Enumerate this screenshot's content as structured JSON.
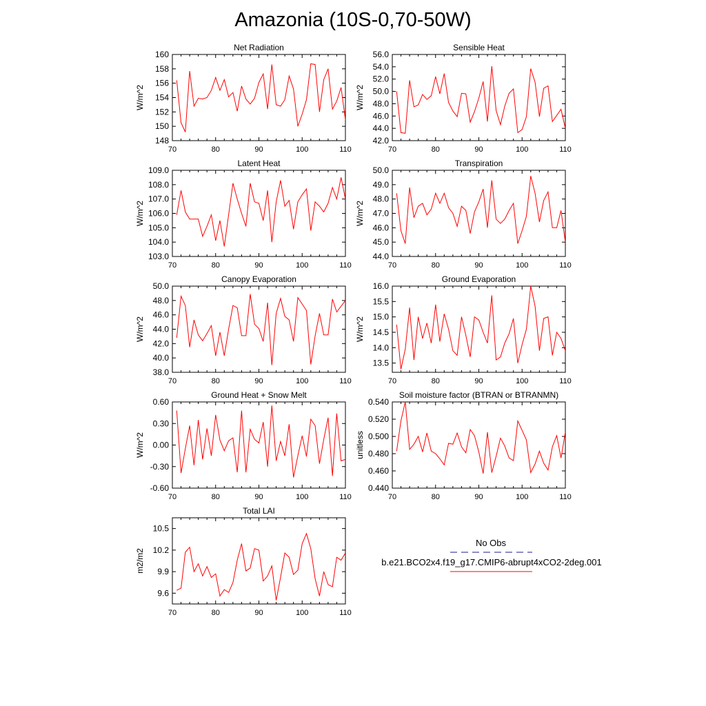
{
  "title": "Amazonia (10S-0,70-50W)",
  "colors": {
    "model_line": "#ff0000",
    "obs_line": "#1a1a8c",
    "axis": "#000000"
  },
  "legend": {
    "obs_label": "No Obs",
    "model_label": "b.e21.BCO2x4.f19_g17.CMIP6-abrupt4xCO2-2deg.001"
  },
  "chart_data": [
    {
      "type": "line",
      "title": "Net Radiation",
      "ylabel": "W/m^2",
      "xlabel": "",
      "xlim": [
        70,
        110
      ],
      "ylim": [
        148,
        160
      ],
      "xticks": [
        70,
        80,
        90,
        100,
        110
      ],
      "yticks": [
        "148",
        "150",
        "152",
        "154",
        "156",
        "158",
        "160"
      ],
      "x": [
        71,
        72,
        73,
        74,
        75,
        76,
        77,
        78,
        79,
        80,
        81,
        82,
        83,
        84,
        85,
        86,
        87,
        88,
        89,
        90,
        91,
        92,
        93,
        94,
        95,
        96,
        97,
        98,
        99,
        100,
        101,
        102,
        103,
        104,
        105,
        106,
        107,
        108,
        109,
        110
      ],
      "series": [
        {
          "name": "b.e21.BCO2x4.f19_g17.CMIP6-abrupt4xCO2-2deg.001",
          "values": [
            156.4,
            150.5,
            149.2,
            157.7,
            152.8,
            153.9,
            153.8,
            154.0,
            155.0,
            156.8,
            155.0,
            156.5,
            154.1,
            154.7,
            152.1,
            155.6,
            153.8,
            153.1,
            153.9,
            156.1,
            157.3,
            152.4,
            158.6,
            153.0,
            152.8,
            153.7,
            157.0,
            155.2,
            150.0,
            151.7,
            153.7,
            158.7,
            158.6,
            152.0,
            156.5,
            158.0,
            152.4,
            153.5,
            155.4,
            150.9
          ]
        }
      ]
    },
    {
      "type": "line",
      "title": "Sensible Heat",
      "ylabel": "W/m^2",
      "xlabel": "",
      "xlim": [
        70,
        110
      ],
      "ylim": [
        42,
        56
      ],
      "xticks": [
        70,
        80,
        90,
        100,
        110
      ],
      "yticks": [
        "42.0",
        "44.0",
        "46.0",
        "48.0",
        "50.0",
        "52.0",
        "54.0",
        "56.0"
      ],
      "x": [
        71,
        72,
        73,
        74,
        75,
        76,
        77,
        78,
        79,
        80,
        81,
        82,
        83,
        84,
        85,
        86,
        87,
        88,
        89,
        90,
        91,
        92,
        93,
        94,
        95,
        96,
        97,
        98,
        99,
        100,
        101,
        102,
        103,
        104,
        105,
        106,
        107,
        108,
        109,
        110
      ],
      "series": [
        {
          "name": "b.e21.BCO2x4.f19_g17.CMIP6-abrupt4xCO2-2deg.001",
          "values": [
            50.0,
            43.3,
            43.2,
            51.8,
            47.5,
            47.8,
            49.5,
            48.7,
            49.3,
            52.4,
            49.6,
            52.9,
            48.2,
            46.8,
            45.9,
            49.7,
            49.6,
            45.0,
            46.7,
            48.9,
            51.6,
            45.1,
            54.1,
            46.9,
            44.6,
            47.6,
            49.7,
            50.4,
            43.3,
            43.8,
            45.9,
            53.7,
            51.5,
            45.9,
            50.5,
            50.9,
            45.1,
            46.1,
            47.1,
            44.0
          ]
        }
      ]
    },
    {
      "type": "line",
      "title": "Latent Heat",
      "ylabel": "W/m^2",
      "xlabel": "",
      "xlim": [
        70,
        110
      ],
      "ylim": [
        103,
        109
      ],
      "xticks": [
        70,
        80,
        90,
        100,
        110
      ],
      "yticks": [
        "103.0",
        "104.0",
        "105.0",
        "106.0",
        "107.0",
        "108.0",
        "109.0"
      ],
      "x": [
        71,
        72,
        73,
        74,
        75,
        76,
        77,
        78,
        79,
        80,
        81,
        82,
        83,
        84,
        85,
        86,
        87,
        88,
        89,
        90,
        91,
        92,
        93,
        94,
        95,
        96,
        97,
        98,
        99,
        100,
        101,
        102,
        103,
        104,
        105,
        106,
        107,
        108,
        109,
        110
      ],
      "series": [
        {
          "name": "b.e21.BCO2x4.f19_g17.CMIP6-abrupt4xCO2-2deg.001",
          "values": [
            105.9,
            107.6,
            106.1,
            105.6,
            105.6,
            105.6,
            104.4,
            105.1,
            105.9,
            104.1,
            105.5,
            103.7,
            105.9,
            108.1,
            107.0,
            106.0,
            105.1,
            108.1,
            106.8,
            106.7,
            105.5,
            107.6,
            104.0,
            106.8,
            108.3,
            106.5,
            106.9,
            104.9,
            106.8,
            107.3,
            107.7,
            104.8,
            106.8,
            106.5,
            106.1,
            106.7,
            107.8,
            107.0,
            108.5,
            107.0
          ]
        }
      ]
    },
    {
      "type": "line",
      "title": "Transpiration",
      "ylabel": "W/m^2",
      "xlabel": "",
      "xlim": [
        70,
        110
      ],
      "ylim": [
        44,
        50
      ],
      "xticks": [
        70,
        80,
        90,
        100,
        110
      ],
      "yticks": [
        "44.0",
        "45.0",
        "46.0",
        "47.0",
        "48.0",
        "49.0",
        "50.0"
      ],
      "x": [
        71,
        72,
        73,
        74,
        75,
        76,
        77,
        78,
        79,
        80,
        81,
        82,
        83,
        84,
        85,
        86,
        87,
        88,
        89,
        90,
        91,
        92,
        93,
        94,
        95,
        96,
        97,
        98,
        99,
        100,
        101,
        102,
        103,
        104,
        105,
        106,
        107,
        108,
        109,
        110
      ],
      "series": [
        {
          "name": "b.e21.BCO2x4.f19_g17.CMIP6-abrupt4xCO2-2deg.001",
          "values": [
            48.4,
            45.8,
            44.9,
            48.8,
            46.7,
            47.5,
            47.7,
            46.9,
            47.3,
            48.4,
            47.7,
            48.4,
            47.4,
            47.0,
            46.1,
            47.5,
            47.2,
            45.6,
            47.1,
            47.8,
            48.7,
            46.0,
            49.3,
            46.6,
            46.3,
            46.6,
            47.2,
            47.7,
            44.9,
            45.8,
            46.8,
            49.6,
            48.4,
            46.4,
            47.9,
            48.5,
            46.0,
            46.0,
            47.2,
            45.0
          ]
        }
      ]
    },
    {
      "type": "line",
      "title": "Canopy Evaporation",
      "ylabel": "W/m^2",
      "xlabel": "",
      "xlim": [
        70,
        110
      ],
      "ylim": [
        38,
        50
      ],
      "xticks": [
        70,
        80,
        90,
        100,
        110
      ],
      "yticks": [
        "38.0",
        "40.0",
        "42.0",
        "44.0",
        "46.0",
        "48.0",
        "50.0"
      ],
      "x": [
        71,
        72,
        73,
        74,
        75,
        76,
        77,
        78,
        79,
        80,
        81,
        82,
        83,
        84,
        85,
        86,
        87,
        88,
        89,
        90,
        91,
        92,
        93,
        94,
        95,
        96,
        97,
        98,
        99,
        100,
        101,
        102,
        103,
        104,
        105,
        106,
        107,
        108,
        109,
        110
      ],
      "series": [
        {
          "name": "b.e21.BCO2x4.f19_g17.CMIP6-abrupt4xCO2-2deg.001",
          "values": [
            42.8,
            48.6,
            47.3,
            41.5,
            45.3,
            43.2,
            42.4,
            43.4,
            44.5,
            40.3,
            43.6,
            40.3,
            44.0,
            47.3,
            47.0,
            43.1,
            43.1,
            48.9,
            44.7,
            44.1,
            42.3,
            47.7,
            39.0,
            46.2,
            48.3,
            45.8,
            45.3,
            42.3,
            48.4,
            47.5,
            46.6,
            39.1,
            43.1,
            46.2,
            43.2,
            43.2,
            48.2,
            46.4,
            47.2,
            48.0
          ]
        }
      ]
    },
    {
      "type": "line",
      "title": "Ground Evaporation",
      "ylabel": "W/m^2",
      "xlabel": "",
      "xlim": [
        70,
        110
      ],
      "ylim": [
        13.2,
        16
      ],
      "xticks": [
        70,
        80,
        90,
        100,
        110
      ],
      "yticks": [
        "13.5",
        "14.0",
        "14.5",
        "15.0",
        "15.5",
        "16.0"
      ],
      "x": [
        71,
        72,
        73,
        74,
        75,
        76,
        77,
        78,
        79,
        80,
        81,
        82,
        83,
        84,
        85,
        86,
        87,
        88,
        89,
        90,
        91,
        92,
        93,
        94,
        95,
        96,
        97,
        98,
        99,
        100,
        101,
        102,
        103,
        104,
        105,
        106,
        107,
        108,
        109,
        110
      ],
      "series": [
        {
          "name": "b.e21.BCO2x4.f19_g17.CMIP6-abrupt4xCO2-2deg.001",
          "values": [
            14.75,
            13.3,
            13.95,
            15.3,
            13.6,
            15.0,
            14.3,
            14.8,
            14.15,
            15.4,
            14.2,
            15.1,
            14.6,
            13.9,
            13.75,
            15.0,
            14.4,
            13.7,
            15.0,
            14.9,
            14.5,
            14.15,
            15.7,
            13.6,
            13.7,
            14.15,
            14.45,
            14.95,
            13.5,
            14.1,
            14.6,
            16.0,
            15.35,
            13.9,
            14.95,
            15.0,
            13.75,
            14.5,
            14.3,
            13.9
          ]
        }
      ]
    },
    {
      "type": "line",
      "title": "Ground Heat + Snow Melt",
      "ylabel": "W/m^2",
      "xlabel": "",
      "xlim": [
        70,
        110
      ],
      "ylim": [
        -0.6,
        0.6
      ],
      "xticks": [
        70,
        80,
        90,
        100,
        110
      ],
      "yticks": [
        "-0.60",
        "-0.30",
        "0.00",
        "0.30",
        "0.60"
      ],
      "x": [
        71,
        72,
        73,
        74,
        75,
        76,
        77,
        78,
        79,
        80,
        81,
        82,
        83,
        84,
        85,
        86,
        87,
        88,
        89,
        90,
        91,
        92,
        93,
        94,
        95,
        96,
        97,
        98,
        99,
        100,
        101,
        102,
        103,
        104,
        105,
        106,
        107,
        108,
        109,
        110
      ],
      "series": [
        {
          "name": "b.e21.BCO2x4.f19_g17.CMIP6-abrupt4xCO2-2deg.001",
          "values": [
            0.48,
            -0.39,
            -0.05,
            0.27,
            -0.28,
            0.35,
            -0.2,
            0.23,
            -0.15,
            0.42,
            0.07,
            -0.08,
            0.06,
            0.1,
            -0.38,
            0.48,
            -0.38,
            0.22,
            0.08,
            0.03,
            0.32,
            -0.3,
            0.55,
            -0.22,
            0.05,
            -0.15,
            0.29,
            -0.45,
            -0.15,
            0.13,
            -0.16,
            0.36,
            0.27,
            -0.26,
            0.08,
            0.38,
            -0.43,
            0.44,
            -0.22,
            -0.2
          ]
        }
      ]
    },
    {
      "type": "line",
      "title": "Soil moisture factor (BTRAN or BTRANMN)",
      "ylabel": "unitless",
      "xlabel": "",
      "xlim": [
        70,
        110
      ],
      "ylim": [
        0.44,
        0.54
      ],
      "xticks": [
        70,
        80,
        90,
        100,
        110
      ],
      "yticks": [
        "0.440",
        "0.460",
        "0.480",
        "0.500",
        "0.520",
        "0.540"
      ],
      "x": [
        71,
        72,
        73,
        74,
        75,
        76,
        77,
        78,
        79,
        80,
        81,
        82,
        83,
        84,
        85,
        86,
        87,
        88,
        89,
        90,
        91,
        92,
        93,
        94,
        95,
        96,
        97,
        98,
        99,
        100,
        101,
        102,
        103,
        104,
        105,
        106,
        107,
        108,
        109,
        110
      ],
      "series": [
        {
          "name": "b.e21.BCO2x4.f19_g17.CMIP6-abrupt4xCO2-2deg.001",
          "values": [
            0.483,
            0.518,
            0.54,
            0.485,
            0.491,
            0.5,
            0.482,
            0.504,
            0.483,
            0.48,
            0.474,
            0.467,
            0.492,
            0.491,
            0.504,
            0.488,
            0.481,
            0.508,
            0.501,
            0.482,
            0.457,
            0.505,
            0.458,
            0.477,
            0.498,
            0.489,
            0.475,
            0.472,
            0.518,
            0.507,
            0.496,
            0.458,
            0.468,
            0.483,
            0.469,
            0.461,
            0.488,
            0.501,
            0.475,
            0.505
          ]
        }
      ]
    },
    {
      "type": "line",
      "title": "Total LAI",
      "ylabel": "m2/m2",
      "xlabel": "",
      "xlim": [
        70,
        110
      ],
      "ylim": [
        9.45,
        10.65
      ],
      "xticks": [
        70,
        80,
        90,
        100,
        110
      ],
      "yticks": [
        "9.6",
        "9.9",
        "10.2",
        "10.5"
      ],
      "x": [
        71,
        72,
        73,
        74,
        75,
        76,
        77,
        78,
        79,
        80,
        81,
        82,
        83,
        84,
        85,
        86,
        87,
        88,
        89,
        90,
        91,
        92,
        93,
        94,
        95,
        96,
        97,
        98,
        99,
        100,
        101,
        102,
        103,
        104,
        105,
        106,
        107,
        108,
        109,
        110
      ],
      "series": [
        {
          "name": "b.e21.BCO2x4.f19_g17.CMIP6-abrupt4xCO2-2deg.001",
          "values": [
            9.64,
            9.67,
            10.17,
            10.24,
            9.9,
            10.01,
            9.84,
            9.97,
            9.82,
            9.87,
            9.56,
            9.65,
            9.61,
            9.75,
            10.06,
            10.29,
            9.91,
            9.95,
            10.22,
            10.2,
            9.77,
            9.84,
            9.98,
            9.5,
            9.82,
            10.16,
            10.1,
            9.86,
            9.92,
            10.29,
            10.43,
            10.22,
            9.8,
            9.56,
            9.9,
            9.72,
            9.69,
            10.1,
            10.06,
            10.16
          ]
        }
      ]
    }
  ]
}
